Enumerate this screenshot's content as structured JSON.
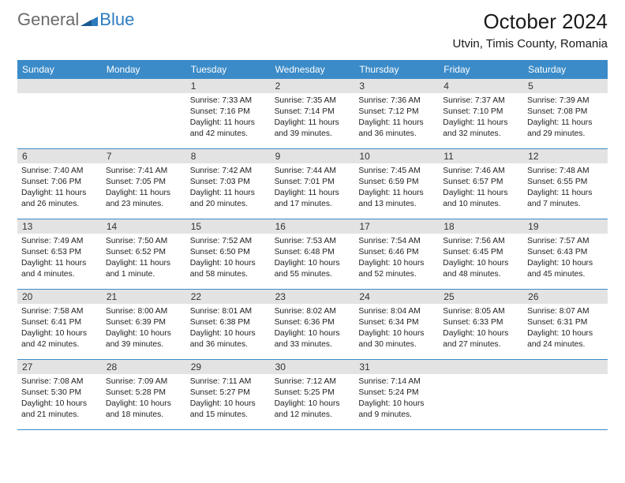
{
  "logo": {
    "general": "General",
    "blue": "Blue"
  },
  "title": "October 2024",
  "location": "Utvin, Timis County, Romania",
  "colors": {
    "header_bg": "#3b8bc8",
    "header_text": "#ffffff",
    "daynum_bg": "#e3e3e3",
    "border": "#3b8bc8",
    "logo_gray": "#6b6b6b",
    "logo_blue": "#2d7cc0"
  },
  "day_names": [
    "Sunday",
    "Monday",
    "Tuesday",
    "Wednesday",
    "Thursday",
    "Friday",
    "Saturday"
  ],
  "weeks": [
    [
      {
        "num": "",
        "sunrise": "",
        "sunset": "",
        "daylight": ""
      },
      {
        "num": "",
        "sunrise": "",
        "sunset": "",
        "daylight": ""
      },
      {
        "num": "1",
        "sunrise": "Sunrise: 7:33 AM",
        "sunset": "Sunset: 7:16 PM",
        "daylight": "Daylight: 11 hours and 42 minutes."
      },
      {
        "num": "2",
        "sunrise": "Sunrise: 7:35 AM",
        "sunset": "Sunset: 7:14 PM",
        "daylight": "Daylight: 11 hours and 39 minutes."
      },
      {
        "num": "3",
        "sunrise": "Sunrise: 7:36 AM",
        "sunset": "Sunset: 7:12 PM",
        "daylight": "Daylight: 11 hours and 36 minutes."
      },
      {
        "num": "4",
        "sunrise": "Sunrise: 7:37 AM",
        "sunset": "Sunset: 7:10 PM",
        "daylight": "Daylight: 11 hours and 32 minutes."
      },
      {
        "num": "5",
        "sunrise": "Sunrise: 7:39 AM",
        "sunset": "Sunset: 7:08 PM",
        "daylight": "Daylight: 11 hours and 29 minutes."
      }
    ],
    [
      {
        "num": "6",
        "sunrise": "Sunrise: 7:40 AM",
        "sunset": "Sunset: 7:06 PM",
        "daylight": "Daylight: 11 hours and 26 minutes."
      },
      {
        "num": "7",
        "sunrise": "Sunrise: 7:41 AM",
        "sunset": "Sunset: 7:05 PM",
        "daylight": "Daylight: 11 hours and 23 minutes."
      },
      {
        "num": "8",
        "sunrise": "Sunrise: 7:42 AM",
        "sunset": "Sunset: 7:03 PM",
        "daylight": "Daylight: 11 hours and 20 minutes."
      },
      {
        "num": "9",
        "sunrise": "Sunrise: 7:44 AM",
        "sunset": "Sunset: 7:01 PM",
        "daylight": "Daylight: 11 hours and 17 minutes."
      },
      {
        "num": "10",
        "sunrise": "Sunrise: 7:45 AM",
        "sunset": "Sunset: 6:59 PM",
        "daylight": "Daylight: 11 hours and 13 minutes."
      },
      {
        "num": "11",
        "sunrise": "Sunrise: 7:46 AM",
        "sunset": "Sunset: 6:57 PM",
        "daylight": "Daylight: 11 hours and 10 minutes."
      },
      {
        "num": "12",
        "sunrise": "Sunrise: 7:48 AM",
        "sunset": "Sunset: 6:55 PM",
        "daylight": "Daylight: 11 hours and 7 minutes."
      }
    ],
    [
      {
        "num": "13",
        "sunrise": "Sunrise: 7:49 AM",
        "sunset": "Sunset: 6:53 PM",
        "daylight": "Daylight: 11 hours and 4 minutes."
      },
      {
        "num": "14",
        "sunrise": "Sunrise: 7:50 AM",
        "sunset": "Sunset: 6:52 PM",
        "daylight": "Daylight: 11 hours and 1 minute."
      },
      {
        "num": "15",
        "sunrise": "Sunrise: 7:52 AM",
        "sunset": "Sunset: 6:50 PM",
        "daylight": "Daylight: 10 hours and 58 minutes."
      },
      {
        "num": "16",
        "sunrise": "Sunrise: 7:53 AM",
        "sunset": "Sunset: 6:48 PM",
        "daylight": "Daylight: 10 hours and 55 minutes."
      },
      {
        "num": "17",
        "sunrise": "Sunrise: 7:54 AM",
        "sunset": "Sunset: 6:46 PM",
        "daylight": "Daylight: 10 hours and 52 minutes."
      },
      {
        "num": "18",
        "sunrise": "Sunrise: 7:56 AM",
        "sunset": "Sunset: 6:45 PM",
        "daylight": "Daylight: 10 hours and 48 minutes."
      },
      {
        "num": "19",
        "sunrise": "Sunrise: 7:57 AM",
        "sunset": "Sunset: 6:43 PM",
        "daylight": "Daylight: 10 hours and 45 minutes."
      }
    ],
    [
      {
        "num": "20",
        "sunrise": "Sunrise: 7:58 AM",
        "sunset": "Sunset: 6:41 PM",
        "daylight": "Daylight: 10 hours and 42 minutes."
      },
      {
        "num": "21",
        "sunrise": "Sunrise: 8:00 AM",
        "sunset": "Sunset: 6:39 PM",
        "daylight": "Daylight: 10 hours and 39 minutes."
      },
      {
        "num": "22",
        "sunrise": "Sunrise: 8:01 AM",
        "sunset": "Sunset: 6:38 PM",
        "daylight": "Daylight: 10 hours and 36 minutes."
      },
      {
        "num": "23",
        "sunrise": "Sunrise: 8:02 AM",
        "sunset": "Sunset: 6:36 PM",
        "daylight": "Daylight: 10 hours and 33 minutes."
      },
      {
        "num": "24",
        "sunrise": "Sunrise: 8:04 AM",
        "sunset": "Sunset: 6:34 PM",
        "daylight": "Daylight: 10 hours and 30 minutes."
      },
      {
        "num": "25",
        "sunrise": "Sunrise: 8:05 AM",
        "sunset": "Sunset: 6:33 PM",
        "daylight": "Daylight: 10 hours and 27 minutes."
      },
      {
        "num": "26",
        "sunrise": "Sunrise: 8:07 AM",
        "sunset": "Sunset: 6:31 PM",
        "daylight": "Daylight: 10 hours and 24 minutes."
      }
    ],
    [
      {
        "num": "27",
        "sunrise": "Sunrise: 7:08 AM",
        "sunset": "Sunset: 5:30 PM",
        "daylight": "Daylight: 10 hours and 21 minutes."
      },
      {
        "num": "28",
        "sunrise": "Sunrise: 7:09 AM",
        "sunset": "Sunset: 5:28 PM",
        "daylight": "Daylight: 10 hours and 18 minutes."
      },
      {
        "num": "29",
        "sunrise": "Sunrise: 7:11 AM",
        "sunset": "Sunset: 5:27 PM",
        "daylight": "Daylight: 10 hours and 15 minutes."
      },
      {
        "num": "30",
        "sunrise": "Sunrise: 7:12 AM",
        "sunset": "Sunset: 5:25 PM",
        "daylight": "Daylight: 10 hours and 12 minutes."
      },
      {
        "num": "31",
        "sunrise": "Sunrise: 7:14 AM",
        "sunset": "Sunset: 5:24 PM",
        "daylight": "Daylight: 10 hours and 9 minutes."
      },
      {
        "num": "",
        "sunrise": "",
        "sunset": "",
        "daylight": ""
      },
      {
        "num": "",
        "sunrise": "",
        "sunset": "",
        "daylight": ""
      }
    ]
  ]
}
